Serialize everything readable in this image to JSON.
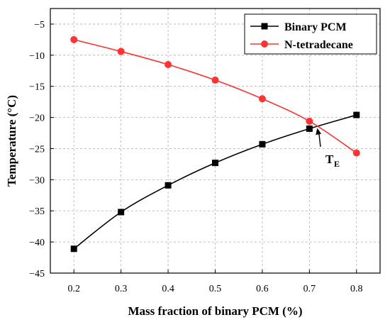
{
  "chart_data": {
    "type": "line",
    "xlabel": "Mass fraction of binary PCM (%)",
    "ylabel": "Temperature (°C)",
    "xlim": [
      0.15,
      0.85
    ],
    "ylim": [
      -45,
      -2.5
    ],
    "x_ticks": [
      0.2,
      0.3,
      0.4,
      0.5,
      0.6,
      0.7,
      0.8
    ],
    "x_tick_labels": [
      "0.2",
      "0.3",
      "0.4",
      "0.5",
      "0.6",
      "0.7",
      "0.8"
    ],
    "y_ticks": [
      -45,
      -40,
      -35,
      -30,
      -25,
      -20,
      -15,
      -10,
      -5
    ],
    "y_tick_labels": [
      "−45",
      "−40",
      "−35",
      "−30",
      "−25",
      "−20",
      "−15",
      "−10",
      "−5"
    ],
    "grid": true,
    "legend_position": "top-right",
    "x": [
      0.2,
      0.3,
      0.4,
      0.5,
      0.6,
      0.7,
      0.8
    ],
    "series": [
      {
        "name": "Binary PCM",
        "marker": "square",
        "color": "#000000",
        "values": [
          -41.1,
          -35.2,
          -30.9,
          -27.3,
          -24.3,
          -21.8,
          -19.6
        ]
      },
      {
        "name": "N-tetradecane",
        "marker": "circle",
        "color": "#ff3333",
        "values": [
          -7.5,
          -9.4,
          -11.5,
          -14.0,
          -17.0,
          -20.6,
          -25.7
        ]
      }
    ],
    "annotations": [
      {
        "text": "T",
        "subscript": "E",
        "points_to": {
          "x": 0.715,
          "y": -21.6
        }
      }
    ]
  }
}
